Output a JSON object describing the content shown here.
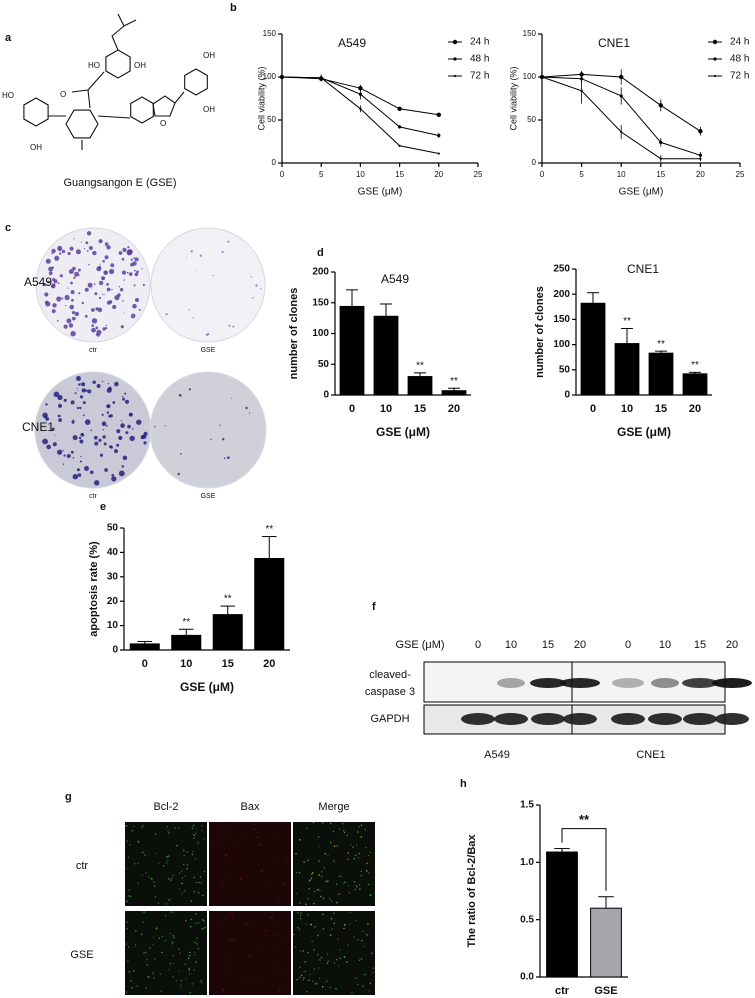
{
  "panel_labels": [
    "a",
    "b",
    "c",
    "d",
    "e",
    "f",
    "g",
    "h"
  ],
  "structure": {
    "caption": "Guangsangon E (GSE)",
    "atoms": [
      "HO",
      "OH",
      "O",
      "HO",
      "OH",
      "OH",
      "OH",
      "O"
    ]
  },
  "colony": {
    "rows": [
      "A549",
      "CNE1"
    ],
    "captions": [
      "ctr",
      "GSE"
    ]
  },
  "western": {
    "treatment": "GSE (μM)",
    "lanes": [
      "0",
      "10",
      "15",
      "20"
    ],
    "rows": [
      "cleaved-",
      "caspase 3",
      "GAPDH"
    ],
    "cells": [
      "A549",
      "CNE1"
    ]
  },
  "immunofluorescence": {
    "columns": [
      "Bcl-2",
      "Bax",
      "Merge"
    ],
    "rows": [
      "ctr",
      "GSE"
    ]
  },
  "chart_data": [
    {
      "type": "line",
      "title": "A549",
      "xlabel": "GSE (μM)",
      "ylabel": "Cell viability (%)",
      "x": [
        0,
        5,
        10,
        15,
        20
      ],
      "xlim": [
        0,
        25
      ],
      "xticks": [
        0,
        5,
        10,
        15,
        20,
        25
      ],
      "ylim": [
        0,
        150
      ],
      "yticks": [
        0,
        50,
        100,
        150
      ],
      "legend": "upper right",
      "series": [
        {
          "name": "24 h",
          "color": "#000000",
          "values": [
            100,
            98,
            87,
            63,
            56
          ],
          "errors": [
            0,
            3,
            4,
            2,
            2
          ]
        },
        {
          "name": "48 h",
          "color": "#000000",
          "values": [
            100,
            99,
            80,
            42,
            32
          ],
          "errors": [
            0,
            4,
            6,
            2,
            3
          ]
        },
        {
          "name": "72 h",
          "color": "#000000",
          "values": [
            100,
            99,
            63,
            20,
            11
          ],
          "errors": [
            0,
            3,
            4,
            1,
            1
          ]
        }
      ]
    },
    {
      "type": "line",
      "title": "CNE1",
      "xlabel": "GSE (μM)",
      "ylabel": "Cell viability (%)",
      "x": [
        0,
        5,
        10,
        15,
        20
      ],
      "xlim": [
        0,
        25
      ],
      "xticks": [
        0,
        5,
        10,
        15,
        20,
        25
      ],
      "ylim": [
        0,
        150
      ],
      "yticks": [
        0,
        50,
        100,
        150
      ],
      "legend": "upper right",
      "series": [
        {
          "name": "24 h",
          "color": "#000000",
          "values": [
            100,
            103,
            100,
            67,
            37
          ],
          "errors": [
            0,
            4,
            9,
            7,
            5
          ]
        },
        {
          "name": "48 h",
          "color": "#000000",
          "values": [
            100,
            98,
            78,
            24,
            9
          ],
          "errors": [
            0,
            6,
            10,
            5,
            4
          ]
        },
        {
          "name": "72 h",
          "color": "#000000",
          "values": [
            100,
            84,
            36,
            5,
            5
          ],
          "errors": [
            0,
            15,
            8,
            4,
            3
          ]
        }
      ]
    },
    {
      "type": "bar",
      "title": "A549",
      "xlabel": "GSE (μM)",
      "ylabel": "number of clones",
      "categories": [
        "0",
        "10",
        "15",
        "20"
      ],
      "values": [
        144,
        128,
        30,
        7
      ],
      "errors": [
        27,
        20,
        6,
        4
      ],
      "significance": [
        null,
        null,
        "**",
        "**"
      ],
      "color": "#000000",
      "ylim": [
        0,
        200
      ],
      "yticks": [
        0,
        50,
        100,
        150,
        200
      ]
    },
    {
      "type": "bar",
      "title": "CNE1",
      "xlabel": "GSE (μM)",
      "ylabel": "number of clones",
      "categories": [
        "0",
        "10",
        "15",
        "20"
      ],
      "values": [
        182,
        102,
        83,
        42
      ],
      "errors": [
        21,
        30,
        4,
        3
      ],
      "significance": [
        null,
        "**",
        "**",
        "**"
      ],
      "color": "#000000",
      "ylim": [
        0,
        250
      ],
      "yticks": [
        0,
        50,
        100,
        150,
        200,
        250
      ]
    },
    {
      "type": "bar",
      "xlabel": "GSE (μM)",
      "ylabel": "apoptosis rate (%)",
      "categories": [
        "0",
        "10",
        "15",
        "20"
      ],
      "values": [
        2.5,
        6,
        14.5,
        37.5
      ],
      "errors": [
        1,
        2.5,
        3.5,
        9
      ],
      "significance": [
        null,
        "**",
        "**",
        "**"
      ],
      "color": "#000000",
      "ylim": [
        0,
        50
      ],
      "yticks": [
        0,
        10,
        20,
        30,
        40,
        50
      ]
    },
    {
      "type": "bar",
      "ylabel": "The ratio of Bcl-2/Bax",
      "categories": [
        "ctr",
        "GSE"
      ],
      "values": [
        1.09,
        0.6
      ],
      "errors": [
        0.03,
        0.1
      ],
      "colors": [
        "#000000",
        "#a6a6ae"
      ],
      "bracket": {
        "label": "**",
        "color": "#1f3c8c"
      },
      "ylim": [
        0,
        1.5
      ],
      "yticks": [
        {
          "value": 0,
          "label": "0.0"
        },
        0.5,
        {
          "value": 1,
          "label": "1.0"
        },
        {
          "value": 1.5,
          "label": "1.5"
        }
      ]
    }
  ]
}
